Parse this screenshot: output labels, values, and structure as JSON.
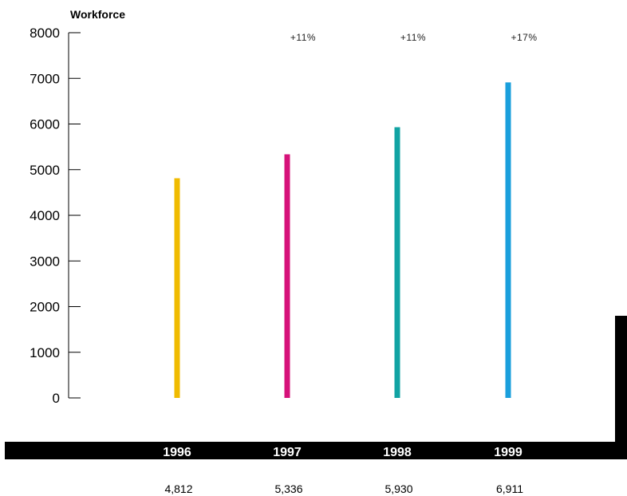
{
  "chart_data": {
    "type": "bar",
    "ylabel": "Workforce",
    "ylim": [
      0,
      8000
    ],
    "yticks": [
      0,
      1000,
      2000,
      3000,
      4000,
      5000,
      6000,
      7000,
      8000
    ],
    "categories": [
      "1996",
      "1997",
      "1998",
      "1999"
    ],
    "values": [
      4812,
      5336,
      5930,
      6911
    ],
    "value_labels": [
      "4,812",
      "5,336",
      "5,930",
      "6,911"
    ],
    "growth_labels": [
      "",
      "+11%",
      "+11%",
      "+17%"
    ],
    "colors": [
      "#f0bb00",
      "#d6127a",
      "#11a3a3",
      "#1a9fdc"
    ],
    "grid": false
  }
}
